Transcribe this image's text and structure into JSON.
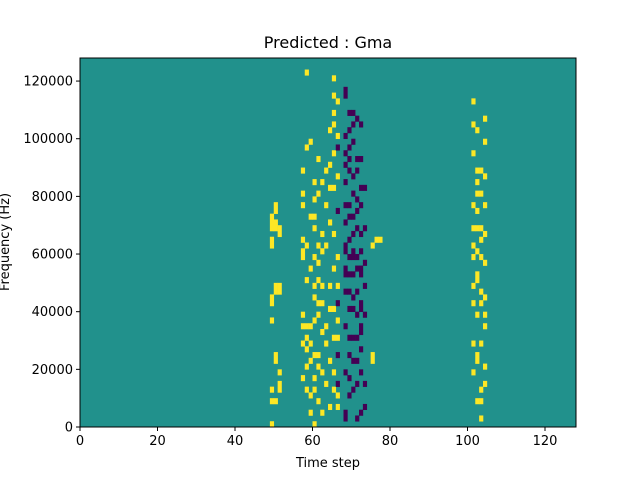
{
  "chart_data": {
    "type": "heatmap",
    "title": "Predicted : Gma",
    "xlabel": "Time step",
    "ylabel": "Frequency (Hz)",
    "xlim": [
      0,
      128
    ],
    "ylim": [
      0,
      128000
    ],
    "xticks": [
      0,
      20,
      40,
      60,
      80,
      100,
      120
    ],
    "yticks": [
      0,
      20000,
      40000,
      60000,
      80000,
      100000,
      120000
    ],
    "xtick_labels": [
      "0",
      "20",
      "40",
      "60",
      "80",
      "100",
      "120"
    ],
    "ytick_labels": [
      "0",
      "20000",
      "40000",
      "60000",
      "80000",
      "100000",
      "120000"
    ],
    "n_time_steps": 128,
    "n_freq_bins": 64,
    "colormap": "viridis",
    "value_levels": [
      0,
      1,
      2
    ],
    "colors": {
      "low": "#440154",
      "mid": "#21918c",
      "high": "#fde725"
    },
    "background_value": 1,
    "high_columns": [
      {
        "t": 49,
        "rows": [
          0,
          4,
          6,
          18,
          21,
          22,
          31,
          32,
          34,
          35,
          36
        ]
      },
      {
        "t": 50,
        "rows": [
          4,
          11,
          12,
          23,
          24,
          34,
          35,
          37,
          38
        ]
      },
      {
        "t": 51,
        "rows": [
          6,
          7,
          9,
          23,
          24,
          33,
          34
        ]
      },
      {
        "t": 57,
        "rows": [
          8,
          14,
          17,
          19,
          29,
          30,
          32,
          38,
          40,
          44
        ]
      },
      {
        "t": 58,
        "rows": [
          6,
          10,
          13,
          15,
          17,
          25,
          31,
          48,
          61
        ]
      },
      {
        "t": 59,
        "rows": [
          2,
          5,
          11,
          14,
          17,
          27,
          36,
          49
        ]
      },
      {
        "t": 60,
        "rows": [
          0,
          6,
          8,
          12,
          18,
          22,
          24,
          29,
          34,
          36,
          39,
          42
        ]
      },
      {
        "t": 61,
        "rows": [
          4,
          10,
          12,
          19,
          21,
          25,
          28,
          31,
          40,
          46
        ]
      },
      {
        "t": 62,
        "rows": [
          2,
          9,
          16,
          21,
          24,
          30,
          33,
          42
        ]
      },
      {
        "t": 63,
        "rows": [
          7,
          14,
          17,
          31,
          38,
          44
        ]
      },
      {
        "t": 64,
        "rows": [
          3,
          11,
          20,
          24,
          35,
          41,
          45,
          51
        ]
      },
      {
        "t": 65,
        "rows": [
          6,
          9,
          15,
          20,
          27,
          33,
          41,
          47,
          52,
          54,
          57,
          60
        ]
      },
      {
        "t": 66,
        "rows": [
          3,
          5,
          15,
          18,
          24,
          29,
          43,
          50,
          56
        ]
      },
      {
        "t": 75,
        "rows": [
          11,
          12,
          31
        ]
      },
      {
        "t": 76,
        "rows": [
          32
        ]
      },
      {
        "t": 77,
        "rows": [
          32
        ]
      },
      {
        "t": 101,
        "rows": [
          9,
          14,
          21,
          24,
          29,
          31,
          34,
          38,
          47,
          52,
          56
        ]
      },
      {
        "t": 102,
        "rows": [
          4,
          11,
          12,
          19,
          25,
          26,
          30,
          34,
          37,
          40,
          42,
          44,
          51
        ]
      },
      {
        "t": 103,
        "rows": [
          1,
          4,
          6,
          14,
          21,
          23,
          29,
          32,
          34,
          40,
          44
        ]
      },
      {
        "t": 104,
        "rows": [
          7,
          10,
          17,
          19,
          22,
          28,
          33,
          38,
          43,
          49,
          53
        ]
      }
    ],
    "low_columns": [
      {
        "t": 66,
        "rows": [
          7,
          12,
          21,
          37,
          48
        ]
      },
      {
        "t": 68,
        "rows": [
          1,
          2,
          9,
          17,
          23,
          26,
          27,
          30,
          31,
          35,
          38,
          42,
          45,
          47,
          50,
          57,
          58
        ]
      },
      {
        "t": 69,
        "rows": [
          5,
          8,
          12,
          15,
          20,
          23,
          26,
          29,
          32,
          36,
          38,
          44,
          46,
          48,
          51,
          54
        ]
      },
      {
        "t": 70,
        "rows": [
          6,
          11,
          15,
          20,
          22,
          26,
          29,
          30,
          33,
          36,
          40,
          43,
          49,
          52,
          54
        ]
      },
      {
        "t": 71,
        "rows": [
          1,
          7,
          11,
          15,
          19,
          23,
          27,
          29,
          34,
          37,
          39,
          44,
          46,
          53
        ]
      },
      {
        "t": 72,
        "rows": [
          2,
          9,
          13,
          16,
          17,
          20,
          21,
          26,
          27,
          30,
          33,
          38,
          41,
          46,
          52
        ]
      },
      {
        "t": 73,
        "rows": [
          3,
          7,
          19,
          24,
          28,
          34,
          41
        ]
      }
    ]
  }
}
